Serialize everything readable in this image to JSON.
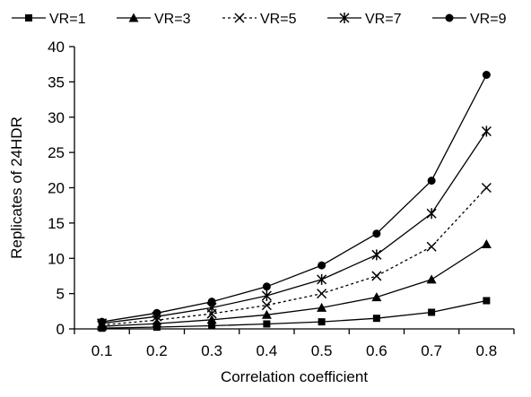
{
  "chart_data": {
    "type": "line",
    "title": "",
    "xlabel": "Correlation coefficient",
    "ylabel": "Replicates of 24HDR",
    "categories": [
      "0.1",
      "0.2",
      "0.3",
      "0.4",
      "0.5",
      "0.6",
      "0.7",
      "0.8"
    ],
    "ylim": [
      0,
      40
    ],
    "yticks": [
      "0",
      "5",
      "10",
      "15",
      "20",
      "25",
      "30",
      "35",
      "40"
    ],
    "grid": false,
    "legend_position": "top",
    "series": [
      {
        "name": "VR=1",
        "marker": "square",
        "line": "solid",
        "values": [
          0.1,
          0.25,
          0.45,
          0.7,
          1.0,
          1.5,
          2.35,
          4.0
        ]
      },
      {
        "name": "VR=3",
        "marker": "triangle",
        "line": "solid",
        "values": [
          0.35,
          0.75,
          1.3,
          2.0,
          3.0,
          4.5,
          7.0,
          12.0
        ]
      },
      {
        "name": "VR=5",
        "marker": "x",
        "line": "dotted",
        "values": [
          0.55,
          1.25,
          2.15,
          3.35,
          5.0,
          7.5,
          11.65,
          20.0
        ]
      },
      {
        "name": "VR=7",
        "marker": "star",
        "line": "solid",
        "values": [
          0.8,
          1.75,
          3.0,
          4.7,
          7.0,
          10.5,
          16.35,
          28.0
        ]
      },
      {
        "name": "VR=9",
        "marker": "circle",
        "line": "solid",
        "values": [
          1.0,
          2.25,
          3.85,
          6.0,
          9.0,
          13.5,
          21.0,
          36.0
        ]
      }
    ]
  }
}
